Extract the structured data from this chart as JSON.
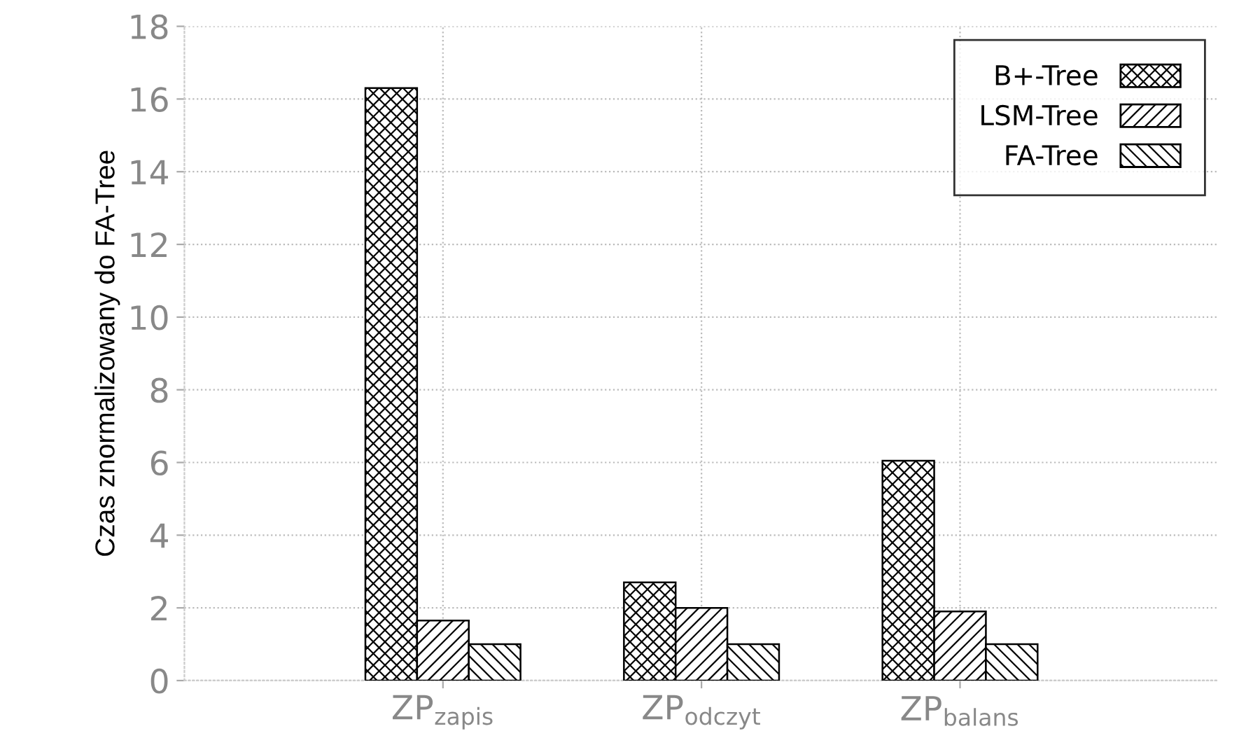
{
  "chart_data": {
    "type": "bar",
    "ylabel": "Czas znormalizowany do FA-Tree",
    "categories": [
      "ZP$_{zapis}$",
      "ZP$_{odczyt}$",
      "ZP$_{balans}$"
    ],
    "series": [
      {
        "name": "B+-Tree",
        "color": "#000000",
        "values": [
          16.3,
          2.7,
          6.05
        ]
      },
      {
        "name": "LSM-Tree",
        "color": "#000000",
        "values": [
          1.65,
          2.0,
          1.9
        ]
      },
      {
        "name": "FA-Tree",
        "color": "#000000",
        "values": [
          1.0,
          1.0,
          1.0
        ]
      }
    ],
    "ylim": [
      0,
      18
    ],
    "yticks": [
      0,
      2,
      4,
      6,
      8,
      10,
      12,
      14,
      16,
      18
    ],
    "grid": true,
    "legend": "top right"
  }
}
